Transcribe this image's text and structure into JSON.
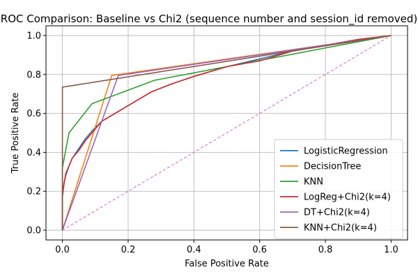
{
  "chart_data": {
    "type": "line",
    "title": "ROC Comparison: Baseline vs Chi2 (sequence number and session_id removed)",
    "xlabel": "False Positive Rate",
    "ylabel": "True Positive Rate",
    "xlim": [
      -0.05,
      1.05
    ],
    "ylim": [
      -0.05,
      1.05
    ],
    "xticks": [
      0.0,
      0.2,
      0.4,
      0.6,
      0.8,
      1.0
    ],
    "yticks": [
      0.0,
      0.2,
      0.4,
      0.6,
      0.8,
      1.0
    ],
    "xtick_labels": [
      "0.0",
      "0.2",
      "0.4",
      "0.6",
      "0.8",
      "1.0"
    ],
    "ytick_labels": [
      "0.0",
      "0.2",
      "0.4",
      "0.6",
      "0.8",
      "1.0"
    ],
    "grid": true,
    "legend_position": "lower-right",
    "series": [
      {
        "name": "LogisticRegression",
        "color": "#1f77b4",
        "x": [
          0.0,
          0.0,
          0.005,
          0.01,
          0.02,
          0.03,
          0.05,
          0.07,
          0.09,
          0.12,
          0.15,
          0.18,
          0.22,
          0.27,
          0.33,
          0.4,
          0.5,
          0.6,
          0.7,
          0.8,
          0.9,
          1.0
        ],
        "y": [
          0.0,
          0.17,
          0.24,
          0.28,
          0.33,
          0.37,
          0.42,
          0.47,
          0.51,
          0.56,
          0.59,
          0.62,
          0.66,
          0.71,
          0.75,
          0.79,
          0.84,
          0.88,
          0.92,
          0.95,
          0.98,
          1.0
        ]
      },
      {
        "name": "DecisionTree",
        "color": "#ff7f0e",
        "x": [
          0.0,
          0.15,
          1.0
        ],
        "y": [
          0.0,
          0.795,
          1.0
        ]
      },
      {
        "name": "KNN",
        "color": "#2ca02c",
        "x": [
          0.0,
          0.0,
          0.02,
          0.09,
          0.28,
          1.0
        ],
        "y": [
          0.0,
          0.32,
          0.5,
          0.65,
          0.77,
          1.0
        ]
      },
      {
        "name": "LogReg+Chi2(k=4)",
        "color": "#d62728",
        "x": [
          0.0,
          0.0,
          0.005,
          0.01,
          0.02,
          0.03,
          0.05,
          0.07,
          0.09,
          0.12,
          0.15,
          0.18,
          0.22,
          0.27,
          0.33,
          0.4,
          0.5,
          0.6,
          0.7,
          0.8,
          0.9,
          1.0
        ],
        "y": [
          0.0,
          0.18,
          0.24,
          0.29,
          0.33,
          0.37,
          0.41,
          0.46,
          0.5,
          0.56,
          0.59,
          0.62,
          0.66,
          0.71,
          0.75,
          0.79,
          0.84,
          0.87,
          0.92,
          0.95,
          0.98,
          1.0
        ]
      },
      {
        "name": "DT+Chi2(k=4)",
        "color": "#9467bd",
        "x": [
          0.0,
          0.17,
          1.0
        ],
        "y": [
          0.0,
          0.795,
          1.0
        ]
      },
      {
        "name": "KNN+Chi2(k=4)",
        "color": "#8c564b",
        "x": [
          0.0,
          0.0,
          0.0,
          1.0
        ],
        "y": [
          0.0,
          0.73,
          0.735,
          1.0
        ]
      }
    ],
    "reference_line": {
      "x": [
        0.0,
        1.0
      ],
      "y": [
        0.0,
        1.0
      ],
      "color": "#e377c2",
      "style": "dashed"
    }
  }
}
